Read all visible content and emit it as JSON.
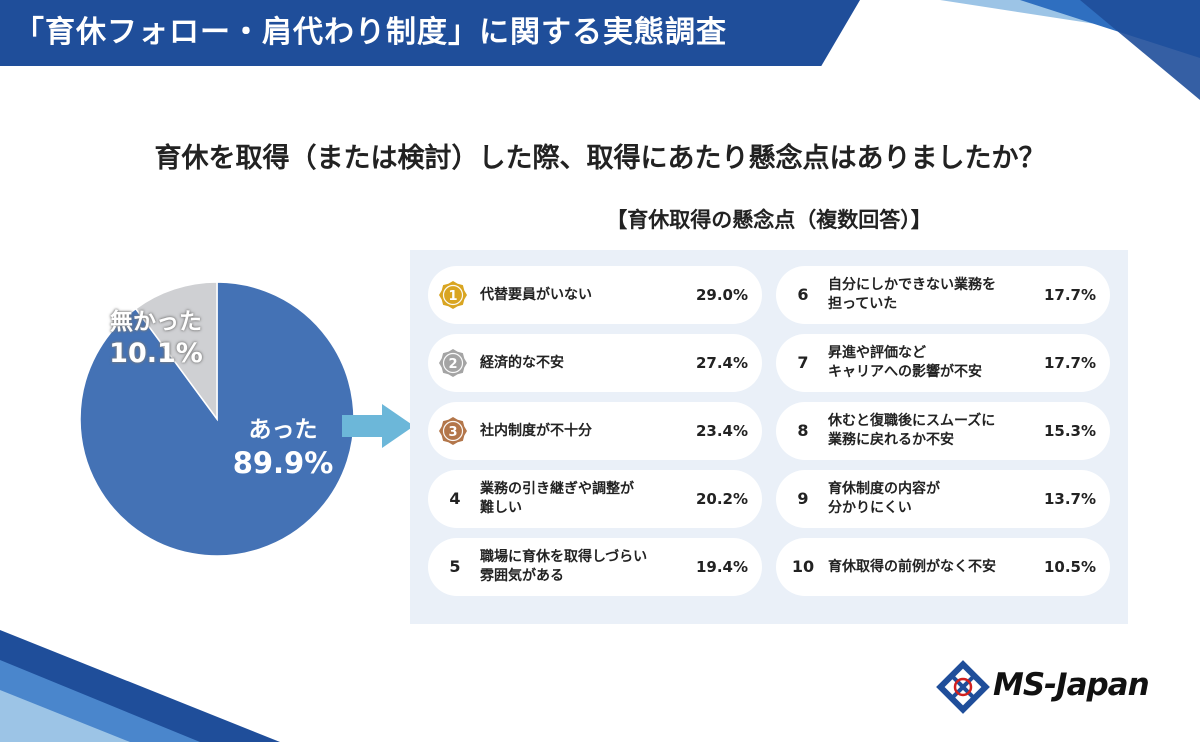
{
  "header": {
    "title": "「育休フォロー・肩代わり制度」に関する実態調査"
  },
  "question": "育休を取得（または検討）した際、取得にあたり懸念点はありましたか？",
  "colors": {
    "brand_blue": "#1f4e9a",
    "pie_yes": "#4472b5",
    "pie_no": "#cfd0d3",
    "arrow": "#6cb7d9",
    "panel_bg": "#eaf0f8",
    "gold": "#d9a521",
    "silver": "#a4a4a4",
    "bronze": "#b3764a"
  },
  "chart_data": [
    {
      "type": "pie",
      "labels": [
        "あった",
        "無かった"
      ],
      "values": [
        89.9,
        10.1
      ],
      "value_labels": [
        "89.9%",
        "10.1%"
      ],
      "title": ""
    },
    {
      "type": "table",
      "title": "【育休取得の懸念点（複数回答）】",
      "ranks": [
        {
          "rank": "1",
          "label": "代替要員がいない",
          "value": 29.0,
          "value_label": "29.0%",
          "medal": "gold-medal-icon"
        },
        {
          "rank": "2",
          "label": "経済的な不安",
          "value": 27.4,
          "value_label": "27.4%",
          "medal": "silver-medal-icon"
        },
        {
          "rank": "3",
          "label": "社内制度が不十分",
          "value": 23.4,
          "value_label": "23.4%",
          "medal": "bronze-medal-icon"
        },
        {
          "rank": "4",
          "label": "業務の引き継ぎや調整が難しい",
          "line1": "業務の引き継ぎや調整が",
          "line2": "難しい",
          "value": 20.2,
          "value_label": "20.2%"
        },
        {
          "rank": "5",
          "label": "職場に育休を取得しづらい雰囲気がある",
          "line1": "職場に育休を取得しづらい",
          "line2": "雰囲気がある",
          "value": 19.4,
          "value_label": "19.4%"
        },
        {
          "rank": "6",
          "label": "自分にしかできない業務を担っていた",
          "line1": "自分にしかできない業務を",
          "line2": "担っていた",
          "value": 17.7,
          "value_label": "17.7%"
        },
        {
          "rank": "7",
          "label": "昇進や評価などキャリアへの影響が不安",
          "line1": "昇進や評価など",
          "line2": "キャリアへの影響が不安",
          "value": 17.7,
          "value_label": "17.7%"
        },
        {
          "rank": "8",
          "label": "休むと復職後にスムーズに業務に戻れるか不安",
          "line1": "休むと復職後にスムーズに",
          "line2": "業務に戻れるか不安",
          "value": 15.3,
          "value_label": "15.3%"
        },
        {
          "rank": "9",
          "label": "育休制度の内容が分かりにくい",
          "line1": "育休制度の内容が",
          "line2": "分かりにくい",
          "value": 13.7,
          "value_label": "13.7%"
        },
        {
          "rank": "10",
          "label": "育休取得の前例がなく不安",
          "value": 10.5,
          "value_label": "10.5%"
        }
      ]
    }
  ],
  "logo": {
    "text": "MS-Japan"
  }
}
